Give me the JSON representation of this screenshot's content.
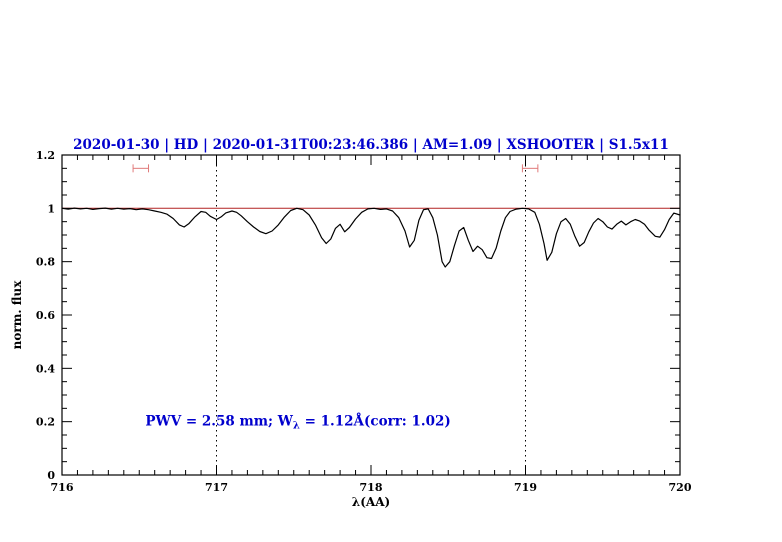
{
  "colors": {
    "title": "#0000cd",
    "annotation": "#0000cd",
    "continuum": "#b22222",
    "marker": "#e07a7a",
    "spectrum": "#000000",
    "axis": "#000000"
  },
  "chart_data": {
    "type": "line",
    "title": "2020-01-30 | HD | 2020-01-31T00:23:46.386 | AM=1.09 | XSHOOTER | S1.5x11",
    "xlabel": "λ(AA)",
    "ylabel": "norm. flux",
    "xlim": [
      716,
      720
    ],
    "ylim": [
      0,
      1.2
    ],
    "x_ticks": [
      716,
      717,
      718,
      719,
      720
    ],
    "x_tick_labels": [
      "716",
      "717",
      "718",
      "719",
      "720"
    ],
    "x_minor_step": 0.1,
    "y_ticks": [
      0,
      0.2,
      0.4,
      0.6,
      0.8,
      1,
      1.2
    ],
    "y_tick_labels": [
      "0",
      "0.2",
      "0.4",
      "0.6",
      "0.8",
      "1",
      "1.2"
    ],
    "y_minor_step": 0.05,
    "grid": false,
    "legend": "none",
    "vlines": [
      {
        "x": 717,
        "style": "dotted",
        "color": "#000000"
      },
      {
        "x": 719,
        "style": "dotted",
        "color": "#000000"
      }
    ],
    "markers": [
      {
        "type": "horizontal-errorbar",
        "x1": 716.46,
        "x2": 716.56,
        "y": 1.15,
        "color": "#e07a7a"
      },
      {
        "type": "horizontal-errorbar",
        "x1": 718.98,
        "x2": 719.08,
        "y": 1.15,
        "color": "#e07a7a"
      }
    ],
    "annotation": {
      "x": 716.54,
      "y": 0.185,
      "prefix": "PWV = 2.58 mm; W",
      "sub": "λ",
      "suffix": " = 1.12Å(corr: 1.02)"
    },
    "series": [
      {
        "name": "continuum",
        "color": "#b22222",
        "width": 1,
        "points": [
          [
            716.0,
            1.0
          ],
          [
            720.0,
            1.0
          ]
        ]
      },
      {
        "name": "spectrum",
        "color": "#000000",
        "width": 1.2,
        "points": [
          [
            716.0,
            1.0
          ],
          [
            716.04,
            0.997
          ],
          [
            716.08,
            1.001
          ],
          [
            716.12,
            0.998
          ],
          [
            716.16,
            1.0
          ],
          [
            716.2,
            0.996
          ],
          [
            716.24,
            0.999
          ],
          [
            716.28,
            1.001
          ],
          [
            716.32,
            0.997
          ],
          [
            716.36,
            1.0
          ],
          [
            716.4,
            0.997
          ],
          [
            716.44,
            0.999
          ],
          [
            716.48,
            0.995
          ],
          [
            716.52,
            0.998
          ],
          [
            716.56,
            0.995
          ],
          [
            716.6,
            0.99
          ],
          [
            716.64,
            0.985
          ],
          [
            716.68,
            0.978
          ],
          [
            716.72,
            0.962
          ],
          [
            716.76,
            0.938
          ],
          [
            716.79,
            0.93
          ],
          [
            716.82,
            0.942
          ],
          [
            716.86,
            0.968
          ],
          [
            716.9,
            0.988
          ],
          [
            716.93,
            0.985
          ],
          [
            716.96,
            0.97
          ],
          [
            717.0,
            0.958
          ],
          [
            717.03,
            0.968
          ],
          [
            717.06,
            0.983
          ],
          [
            717.1,
            0.99
          ],
          [
            717.13,
            0.985
          ],
          [
            717.16,
            0.972
          ],
          [
            717.2,
            0.95
          ],
          [
            717.24,
            0.93
          ],
          [
            717.28,
            0.913
          ],
          [
            717.32,
            0.905
          ],
          [
            717.36,
            0.915
          ],
          [
            717.4,
            0.938
          ],
          [
            717.44,
            0.968
          ],
          [
            717.48,
            0.992
          ],
          [
            717.52,
            1.0
          ],
          [
            717.56,
            0.995
          ],
          [
            717.6,
            0.975
          ],
          [
            717.64,
            0.938
          ],
          [
            717.68,
            0.89
          ],
          [
            717.71,
            0.868
          ],
          [
            717.74,
            0.885
          ],
          [
            717.77,
            0.925
          ],
          [
            717.8,
            0.94
          ],
          [
            717.83,
            0.912
          ],
          [
            717.86,
            0.928
          ],
          [
            717.9,
            0.96
          ],
          [
            717.94,
            0.985
          ],
          [
            717.98,
            0.998
          ],
          [
            718.02,
            1.0
          ],
          [
            718.06,
            0.996
          ],
          [
            718.1,
            0.998
          ],
          [
            718.14,
            0.99
          ],
          [
            718.18,
            0.965
          ],
          [
            718.22,
            0.915
          ],
          [
            718.25,
            0.855
          ],
          [
            718.28,
            0.88
          ],
          [
            718.31,
            0.955
          ],
          [
            718.34,
            0.995
          ],
          [
            718.37,
            0.998
          ],
          [
            718.4,
            0.965
          ],
          [
            718.43,
            0.9
          ],
          [
            718.46,
            0.8
          ],
          [
            718.48,
            0.78
          ],
          [
            718.51,
            0.8
          ],
          [
            718.54,
            0.86
          ],
          [
            718.57,
            0.915
          ],
          [
            718.6,
            0.928
          ],
          [
            718.63,
            0.88
          ],
          [
            718.66,
            0.838
          ],
          [
            718.69,
            0.858
          ],
          [
            718.72,
            0.845
          ],
          [
            718.75,
            0.815
          ],
          [
            718.78,
            0.812
          ],
          [
            718.81,
            0.85
          ],
          [
            718.84,
            0.915
          ],
          [
            718.87,
            0.965
          ],
          [
            718.9,
            0.988
          ],
          [
            718.94,
            0.997
          ],
          [
            718.98,
            1.0
          ],
          [
            719.02,
            0.998
          ],
          [
            719.06,
            0.985
          ],
          [
            719.09,
            0.94
          ],
          [
            719.12,
            0.868
          ],
          [
            719.14,
            0.805
          ],
          [
            719.17,
            0.835
          ],
          [
            719.2,
            0.905
          ],
          [
            719.23,
            0.95
          ],
          [
            719.26,
            0.962
          ],
          [
            719.29,
            0.94
          ],
          [
            719.32,
            0.895
          ],
          [
            719.35,
            0.858
          ],
          [
            719.38,
            0.872
          ],
          [
            719.41,
            0.912
          ],
          [
            719.44,
            0.945
          ],
          [
            719.47,
            0.962
          ],
          [
            719.5,
            0.95
          ],
          [
            719.53,
            0.93
          ],
          [
            719.56,
            0.922
          ],
          [
            719.59,
            0.94
          ],
          [
            719.62,
            0.952
          ],
          [
            719.65,
            0.938
          ],
          [
            719.68,
            0.95
          ],
          [
            719.71,
            0.958
          ],
          [
            719.74,
            0.952
          ],
          [
            719.77,
            0.94
          ],
          [
            719.8,
            0.918
          ],
          [
            719.84,
            0.895
          ],
          [
            719.87,
            0.892
          ],
          [
            719.9,
            0.92
          ],
          [
            719.93,
            0.958
          ],
          [
            719.96,
            0.982
          ],
          [
            720.0,
            0.975
          ]
        ]
      }
    ]
  }
}
